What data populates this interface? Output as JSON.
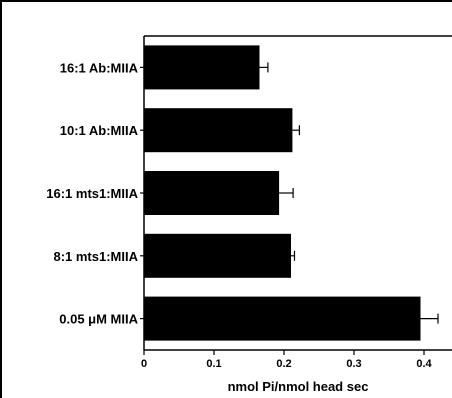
{
  "chart_data": {
    "type": "bar",
    "orientation": "horizontal",
    "categories": [
      "16:1 Ab:MIIA",
      "10:1 Ab:MIIA",
      "16:1 mts1:MIIA",
      "8:1 mts1:MIIA",
      "0.05 μM MIIA"
    ],
    "values": [
      0.165,
      0.212,
      0.193,
      0.21,
      0.395
    ],
    "errors": [
      0.012,
      0.01,
      0.02,
      0.005,
      0.025
    ],
    "xlabel": "nmol Pi/nmol head  sec",
    "ylabel": "",
    "xlim": [
      0,
      0.44
    ],
    "xticks": [
      0,
      0.1,
      0.2,
      0.3,
      0.4
    ],
    "xtick_labels": [
      "0",
      "0.1",
      "0.2",
      "0.3",
      "0.4"
    ],
    "bar_color": "#000000",
    "grid": false,
    "legend": "none"
  }
}
